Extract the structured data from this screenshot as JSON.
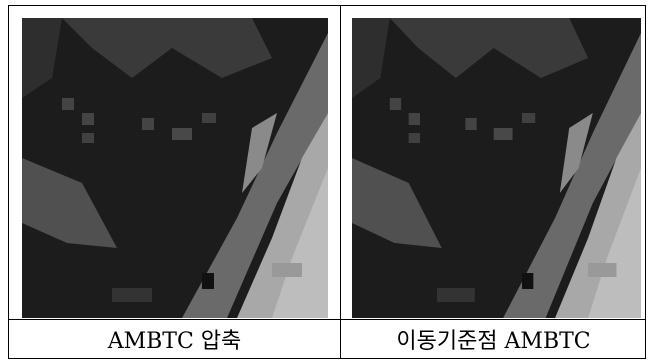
{
  "table": {
    "rows": [
      [
        "AMBTC 압축",
        "이동기준점 AMBTC"
      ]
    ]
  }
}
